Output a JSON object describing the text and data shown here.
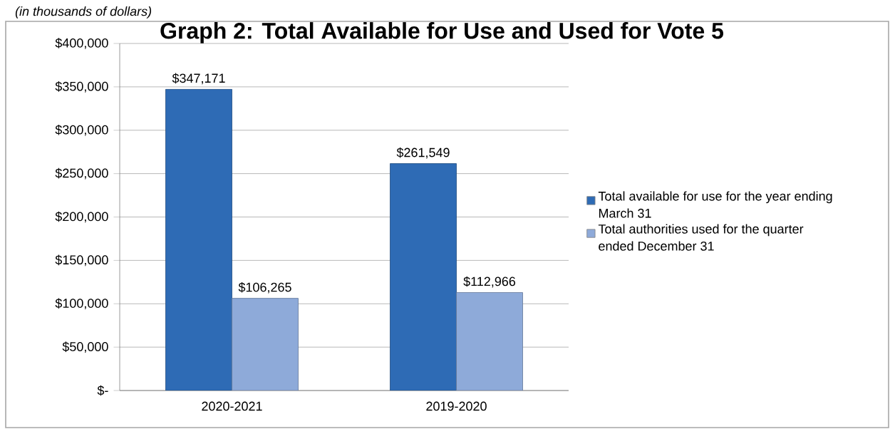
{
  "chart_data": {
    "type": "bar",
    "title": "Graph 2: Total Available for Use and Used for Vote 5",
    "subtitle": "(in thousands of dollars)",
    "categories": [
      "2020-2021",
      "2019-2020"
    ],
    "series": [
      {
        "name": "Total available for use for the year ending March 31",
        "color": "#2e6bb5",
        "values": [
          347171,
          261549
        ],
        "value_labels": [
          "$347,171",
          "$261,549"
        ]
      },
      {
        "name": "Total authorities used for the quarter ended December 31",
        "color": "#8eaad9",
        "values": [
          106265,
          112966
        ],
        "value_labels": [
          "$106,265",
          "$112,966"
        ]
      }
    ],
    "ylim": [
      0,
      400000
    ],
    "yticks": [
      {
        "value": 0,
        "label": "$-"
      },
      {
        "value": 50000,
        "label": "$50,000"
      },
      {
        "value": 100000,
        "label": "$100,000"
      },
      {
        "value": 150000,
        "label": "$150,000"
      },
      {
        "value": 200000,
        "label": "$200,000"
      },
      {
        "value": 250000,
        "label": "$250,000"
      },
      {
        "value": 300000,
        "label": "$300,000"
      },
      {
        "value": 350000,
        "label": "$350,000"
      },
      {
        "value": 400000,
        "label": "$400,000"
      }
    ],
    "grid": "y",
    "legend": "right"
  }
}
